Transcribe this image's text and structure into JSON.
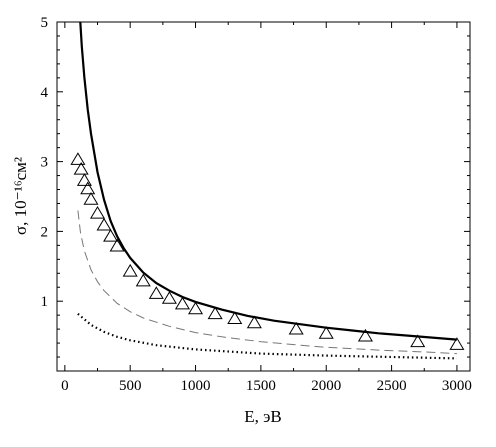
{
  "chart_data": {
    "type": "line",
    "title": "",
    "xlabel": "E, эВ",
    "ylabel": "σ, 10⁻¹⁶см²",
    "xlim": [
      -60,
      3100
    ],
    "ylim": [
      0,
      5
    ],
    "grid": false,
    "legend": "none",
    "x_ticks": [
      0,
      500,
      1000,
      1500,
      2000,
      2500,
      3000
    ],
    "y_ticks": [
      1,
      2,
      3,
      4,
      5
    ],
    "series": [
      {
        "style": "solid",
        "color": "#000000",
        "x": [
          118,
          130,
          150,
          175,
          200,
          250,
          300,
          350,
          400,
          450,
          500,
          600,
          700,
          800,
          900,
          1000,
          1200,
          1400,
          1600,
          1800,
          2000,
          2200,
          2400,
          2600,
          2800,
          3000
        ],
        "y": [
          5.0,
          4.65,
          4.2,
          3.75,
          3.4,
          2.85,
          2.45,
          2.15,
          1.93,
          1.76,
          1.62,
          1.41,
          1.26,
          1.15,
          1.06,
          0.99,
          0.88,
          0.79,
          0.72,
          0.67,
          0.62,
          0.58,
          0.54,
          0.51,
          0.48,
          0.45
        ]
      },
      {
        "style": "dashed",
        "color": "#777777",
        "x": [
          100,
          120,
          150,
          200,
          250,
          300,
          400,
          500,
          600,
          800,
          1000,
          1200,
          1500,
          1800,
          2000,
          2400,
          2800,
          3000
        ],
        "y": [
          2.3,
          1.98,
          1.72,
          1.45,
          1.28,
          1.15,
          0.97,
          0.85,
          0.76,
          0.64,
          0.55,
          0.49,
          0.42,
          0.37,
          0.34,
          0.3,
          0.27,
          0.25
        ]
      },
      {
        "style": "dotted",
        "color": "#000000",
        "x": [
          100,
          150,
          200,
          300,
          400,
          500,
          700,
          1000,
          1500,
          2000,
          2500,
          3000
        ],
        "y": [
          0.82,
          0.74,
          0.66,
          0.56,
          0.49,
          0.44,
          0.37,
          0.31,
          0.25,
          0.22,
          0.2,
          0.18
        ]
      },
      {
        "style": "markers",
        "marker": "triangle-open",
        "color": "#000000",
        "x": [
          100,
          125,
          150,
          175,
          200,
          250,
          300,
          350,
          400,
          500,
          600,
          700,
          800,
          900,
          1000,
          1150,
          1300,
          1450,
          1770,
          2000,
          2300,
          2700,
          3000
        ],
        "y": [
          3.02,
          2.88,
          2.72,
          2.6,
          2.45,
          2.25,
          2.08,
          1.92,
          1.78,
          1.42,
          1.28,
          1.1,
          1.03,
          0.95,
          0.88,
          0.81,
          0.74,
          0.68,
          0.59,
          0.53,
          0.49,
          0.41,
          0.37
        ]
      }
    ]
  }
}
